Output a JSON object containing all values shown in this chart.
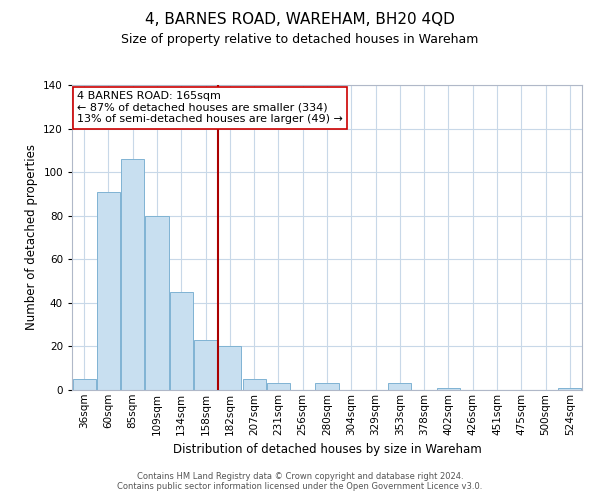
{
  "title": "4, BARNES ROAD, WAREHAM, BH20 4QD",
  "subtitle": "Size of property relative to detached houses in Wareham",
  "xlabel": "Distribution of detached houses by size in Wareham",
  "ylabel": "Number of detached properties",
  "bar_labels": [
    "36sqm",
    "60sqm",
    "85sqm",
    "109sqm",
    "134sqm",
    "158sqm",
    "182sqm",
    "207sqm",
    "231sqm",
    "256sqm",
    "280sqm",
    "304sqm",
    "329sqm",
    "353sqm",
    "378sqm",
    "402sqm",
    "426sqm",
    "451sqm",
    "475sqm",
    "500sqm",
    "524sqm"
  ],
  "bar_values": [
    5,
    91,
    106,
    80,
    45,
    23,
    20,
    5,
    3,
    0,
    3,
    0,
    0,
    3,
    0,
    1,
    0,
    0,
    0,
    0,
    1
  ],
  "bar_color": "#c8dff0",
  "bar_edge_color": "#7fb3d3",
  "vline_x": 5.5,
  "vline_color": "#aa0000",
  "ylim": [
    0,
    140
  ],
  "yticks": [
    0,
    20,
    40,
    60,
    80,
    100,
    120,
    140
  ],
  "annotation_text_line1": "4 BARNES ROAD: 165sqm",
  "annotation_text_line2": "← 87% of detached houses are smaller (334)",
  "annotation_text_line3": "13% of semi-detached houses are larger (49) →",
  "footer_line1": "Contains HM Land Registry data © Crown copyright and database right 2024.",
  "footer_line2": "Contains public sector information licensed under the Open Government Licence v3.0.",
  "title_fontsize": 11,
  "subtitle_fontsize": 9,
  "axis_label_fontsize": 8.5,
  "tick_fontsize": 7.5,
  "annotation_fontsize": 8,
  "footer_fontsize": 6,
  "background_color": "#ffffff",
  "grid_color": "#c8d8e8",
  "box_edge_color": "#cc0000"
}
